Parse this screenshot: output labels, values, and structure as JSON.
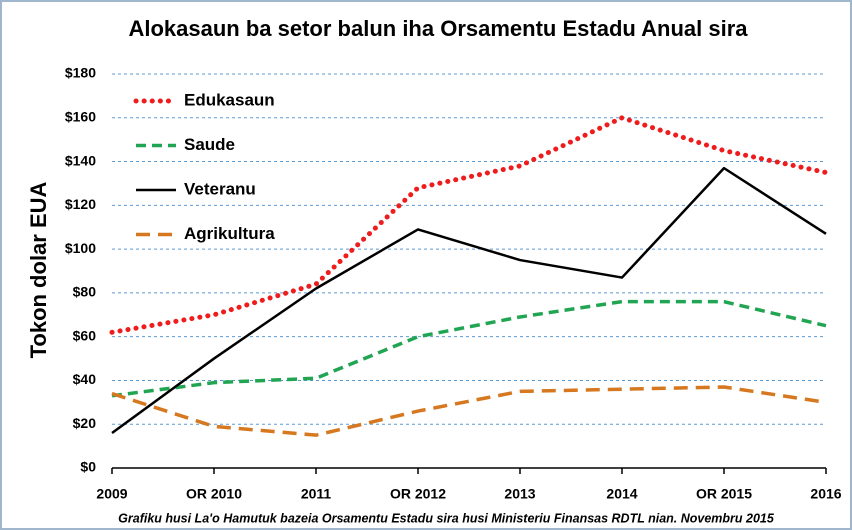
{
  "chart_data": {
    "type": "line",
    "title": "Alokasaun ba setor balun iha Orsamentu Estadu Anual sira",
    "y_label": "Tokon dolar EUA",
    "note": "Grafiku husi La'o Hamutuk bazeia Orsamentu Estadu sira husi Ministeriu Finansas RDTL nian. Novembru 2015",
    "categories": [
      "2009",
      "OR 2010",
      "2011",
      "OR 2012",
      "2013",
      "2014",
      "OR 2015",
      "2016"
    ],
    "series": [
      {
        "name": "Edukasaun",
        "color": "#ee1c1c",
        "values": [
          62,
          70,
          84,
          128,
          138,
          160,
          145,
          135
        ]
      },
      {
        "name": "Saude",
        "color": "#22a552",
        "values": [
          33,
          39,
          41,
          60,
          69,
          76,
          76,
          65
        ]
      },
      {
        "name": "Veteranu",
        "color": "#000000",
        "values": [
          16,
          50,
          82,
          109,
          95,
          87,
          137,
          107
        ]
      },
      {
        "name": "Agrikultura",
        "color": "#d6781f",
        "values": [
          34,
          19,
          15,
          26,
          35,
          36,
          37,
          30
        ]
      }
    ],
    "ylim": [
      0,
      180
    ],
    "yticks": [
      {
        "value": 0,
        "label": "$0"
      },
      {
        "value": 20,
        "label": "$20"
      },
      {
        "value": 40,
        "label": "$40"
      },
      {
        "value": 60,
        "label": "$60"
      },
      {
        "value": 80,
        "label": "$80"
      },
      {
        "value": 100,
        "label": "$100"
      },
      {
        "value": 120,
        "label": "$120"
      },
      {
        "value": 140,
        "label": "$140"
      },
      {
        "value": 160,
        "label": "$160"
      },
      {
        "value": 180,
        "label": "$180"
      }
    ],
    "grid": true,
    "legend": "upper left"
  }
}
